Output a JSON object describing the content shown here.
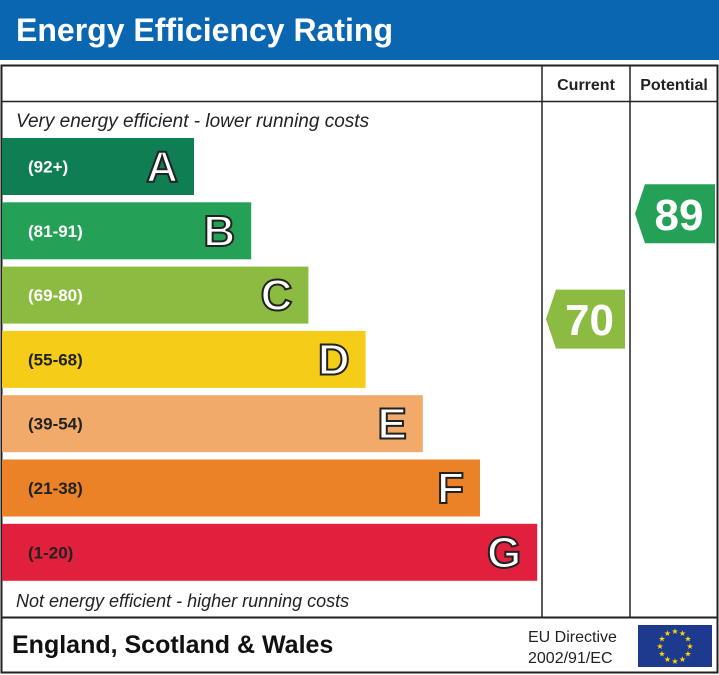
{
  "title": "Energy Efficiency Rating",
  "chart_data": {
    "type": "bar",
    "title": "Energy Efficiency Rating",
    "columns": [
      "Current",
      "Potential"
    ],
    "top_note": "Very energy efficient - lower running costs",
    "bottom_note": "Not energy efficient - higher running costs",
    "bands": [
      {
        "letter": "A",
        "range": "(92+)",
        "color": "#0f7e52"
      },
      {
        "letter": "B",
        "range": "(81-91)",
        "color": "#24a157"
      },
      {
        "letter": "C",
        "range": "(69-80)",
        "color": "#8cbb42"
      },
      {
        "letter": "D",
        "range": "(55-68)",
        "color": "#f5cd19"
      },
      {
        "letter": "E",
        "range": "(39-54)",
        "color": "#f2aa6b"
      },
      {
        "letter": "F",
        "range": "(21-38)",
        "color": "#ec8228"
      },
      {
        "letter": "G",
        "range": "(1-20)",
        "color": "#e0203d"
      }
    ],
    "current": {
      "value": "70",
      "band": "C",
      "color": "#8cbb42"
    },
    "potential": {
      "value": "89",
      "band": "B",
      "color": "#24a157"
    }
  },
  "footer": {
    "region": "England, Scotland & Wales",
    "directive_line1": "EU Directive",
    "directive_line2": "2002/91/EC",
    "flag": "eu-flag-icon"
  }
}
